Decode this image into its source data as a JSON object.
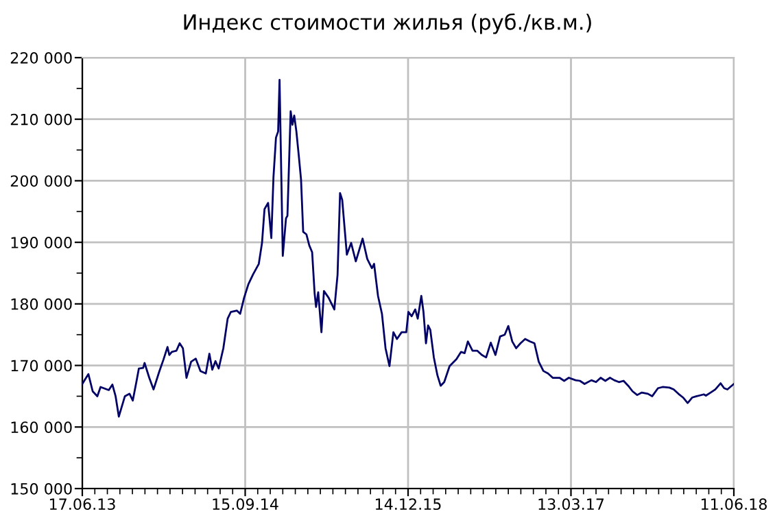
{
  "chart_data": {
    "type": "line",
    "title": "Индекс стоимости жилья (руб./кв.м.)",
    "x": [
      "2013-06-17",
      "2013-07-04",
      "2013-07-16",
      "2013-07-29",
      "2013-08-07",
      "2013-08-30",
      "2013-09-09",
      "2013-09-18",
      "2013-09-27",
      "2013-10-14",
      "2013-10-27",
      "2013-11-05",
      "2013-11-15",
      "2013-11-22",
      "2013-12-04",
      "2013-12-08",
      "2013-12-21",
      "2014-01-02",
      "2014-01-18",
      "2014-01-30",
      "2014-02-10",
      "2014-02-15",
      "2014-02-22",
      "2014-03-07",
      "2014-03-16",
      "2014-03-25",
      "2014-04-04",
      "2014-04-17",
      "2014-04-30",
      "2014-05-13",
      "2014-05-28",
      "2014-06-07",
      "2014-06-15",
      "2014-06-24",
      "2014-07-03",
      "2014-07-16",
      "2014-07-28",
      "2014-08-06",
      "2014-08-23",
      "2014-09-01",
      "2014-09-12",
      "2014-09-24",
      "2014-10-07",
      "2014-10-23",
      "2014-11-01",
      "2014-11-08",
      "2014-11-18",
      "2014-11-27",
      "2014-12-03",
      "2014-12-10",
      "2014-12-16",
      "2014-12-20",
      "2014-12-29",
      "2015-01-07",
      "2015-01-11",
      "2015-01-20",
      "2015-01-25",
      "2015-01-30",
      "2015-02-05",
      "2015-02-12",
      "2015-02-18",
      "2015-02-24",
      "2015-03-05",
      "2015-03-13",
      "2015-03-21",
      "2015-03-28",
      "2015-04-01",
      "2015-04-07",
      "2015-04-16",
      "2015-04-23",
      "2015-05-06",
      "2015-05-22",
      "2015-05-31",
      "2015-06-07",
      "2015-06-13",
      "2015-06-26",
      "2015-07-08",
      "2015-07-21",
      "2015-08-09",
      "2015-08-22",
      "2015-09-04",
      "2015-09-10",
      "2015-09-21",
      "2015-10-02",
      "2015-10-12",
      "2015-10-23",
      "2015-11-03",
      "2015-11-13",
      "2015-11-26",
      "2015-12-09",
      "2015-12-15",
      "2015-12-24",
      "2016-01-03",
      "2016-01-10",
      "2016-01-20",
      "2016-01-26",
      "2016-02-02",
      "2016-02-08",
      "2016-02-14",
      "2016-02-24",
      "2016-03-05",
      "2016-03-14",
      "2016-03-24",
      "2016-04-08",
      "2016-04-27",
      "2016-05-10",
      "2016-05-20",
      "2016-05-29",
      "2016-06-11",
      "2016-06-24",
      "2016-07-07",
      "2016-07-19",
      "2016-08-01",
      "2016-08-14",
      "2016-08-27",
      "2016-09-09",
      "2016-09-19",
      "2016-09-30",
      "2016-10-11",
      "2016-10-23",
      "2016-11-05",
      "2016-11-18",
      "2016-12-01",
      "2016-12-13",
      "2016-12-26",
      "2017-01-08",
      "2017-01-21",
      "2017-02-09",
      "2017-02-22",
      "2017-03-07",
      "2017-03-26",
      "2017-04-07",
      "2017-04-20",
      "2017-05-09",
      "2017-05-22",
      "2017-06-04",
      "2017-06-17",
      "2017-06-30",
      "2017-07-12",
      "2017-07-25",
      "2017-08-07",
      "2017-08-20",
      "2017-09-01",
      "2017-09-14",
      "2017-09-27",
      "2017-10-14",
      "2017-10-26",
      "2017-11-11",
      "2017-11-24",
      "2017-12-13",
      "2017-12-25",
      "2018-01-07",
      "2018-01-20",
      "2018-02-02",
      "2018-02-15",
      "2018-02-27",
      "2018-03-19",
      "2018-03-25",
      "2018-04-07",
      "2018-04-20",
      "2018-05-05",
      "2018-05-15",
      "2018-05-24",
      "2018-06-11"
    ],
    "series": [
      {
        "color": "#000066",
        "values": [
          167000,
          168600,
          165800,
          165000,
          166500,
          166000,
          166900,
          165000,
          161700,
          165000,
          165400,
          164300,
          167300,
          169500,
          169600,
          170400,
          168000,
          166100,
          169000,
          171000,
          173000,
          171700,
          172200,
          172400,
          173600,
          172800,
          168000,
          170600,
          171100,
          169100,
          168700,
          171900,
          169300,
          170700,
          169500,
          172800,
          177600,
          178700,
          178900,
          178400,
          181000,
          183200,
          184800,
          186500,
          189900,
          195400,
          196400,
          190700,
          200600,
          207000,
          208000,
          216400,
          187800,
          193900,
          194300,
          211300,
          209100,
          210600,
          208000,
          203900,
          200200,
          191700,
          191300,
          189500,
          188400,
          181700,
          179500,
          181900,
          175400,
          182100,
          181000,
          179100,
          184700,
          198000,
          196900,
          188000,
          189900,
          186900,
          190600,
          187300,
          185800,
          186500,
          181300,
          178400,
          172800,
          169900,
          175400,
          174300,
          175400,
          175400,
          178700,
          178000,
          179100,
          177600,
          181300,
          178700,
          173600,
          176500,
          175800,
          171300,
          168400,
          166700,
          167300,
          169900,
          171000,
          172200,
          172000,
          173900,
          172400,
          172400,
          171700,
          171300,
          173700,
          171700,
          174700,
          175000,
          176400,
          173900,
          172800,
          173600,
          174300,
          173900,
          173600,
          170600,
          169100,
          168700,
          168000,
          168000,
          167500,
          168000,
          167600,
          167500,
          167000,
          167600,
          167300,
          168000,
          167500,
          168000,
          167600,
          167300,
          167500,
          166700,
          165800,
          165200,
          165600,
          165400,
          165000,
          166300,
          166500,
          166400,
          166100,
          165400,
          164800,
          163900,
          164800,
          165000,
          165300,
          165100,
          165600,
          166100,
          167100,
          166300,
          166100,
          167000
        ]
      }
    ],
    "xlim": [
      "2013-06-17",
      "2018-06-11"
    ],
    "xticks": [
      {
        "value": "2013-06-17",
        "label": "17.06.13"
      },
      {
        "value": "2014-09-15",
        "label": "15.09.14"
      },
      {
        "value": "2015-12-14",
        "label": "14.12.15"
      },
      {
        "value": "2017-03-13",
        "label": "13.03.17"
      },
      {
        "value": "2018-06-11",
        "label": "11.06.18"
      }
    ],
    "ylim": [
      150000,
      220000
    ],
    "yticks": [
      {
        "value": 150000,
        "label": "150 000"
      },
      {
        "value": 160000,
        "label": "160 000"
      },
      {
        "value": 170000,
        "label": "170 000"
      },
      {
        "value": 180000,
        "label": "180 000"
      },
      {
        "value": 190000,
        "label": "190 000"
      },
      {
        "value": 200000,
        "label": "200 000"
      },
      {
        "value": 210000,
        "label": "210 000"
      },
      {
        "value": 220000,
        "label": "220 000"
      }
    ],
    "grid": true,
    "legend": false,
    "marker": "none",
    "line_style": "solid"
  }
}
